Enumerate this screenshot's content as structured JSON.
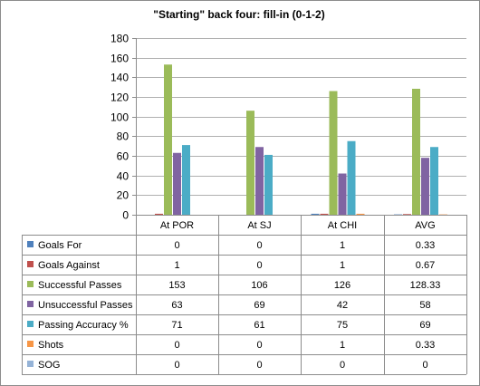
{
  "chart_data": {
    "type": "bar",
    "title": "\"Starting\" back four: fill-in (0-1-2)",
    "categories": [
      "At POR",
      "At SJ",
      "At CHI",
      "AVG"
    ],
    "ylim": [
      0,
      180
    ],
    "yticks": [
      0,
      20,
      40,
      60,
      80,
      100,
      120,
      140,
      160,
      180
    ],
    "grid": true,
    "legend": "data-table-below",
    "series": [
      {
        "name": "Goals For",
        "color": "#4f81bd",
        "values": [
          0,
          0,
          1,
          0.33
        ],
        "labels": [
          "0",
          "0",
          "1",
          "0.33"
        ]
      },
      {
        "name": "Goals Against",
        "color": "#c0504d",
        "values": [
          1,
          0,
          1,
          0.67
        ],
        "labels": [
          "1",
          "0",
          "1",
          "0.67"
        ]
      },
      {
        "name": "Successful Passes",
        "color": "#9bbb59",
        "values": [
          153,
          106,
          126,
          128.33
        ],
        "labels": [
          "153",
          "106",
          "126",
          "128.33"
        ]
      },
      {
        "name": "Unsuccessful Passes",
        "color": "#8064a2",
        "values": [
          63,
          69,
          42,
          58
        ],
        "labels": [
          "63",
          "69",
          "42",
          "58"
        ]
      },
      {
        "name": "Passing Accuracy %",
        "color": "#4bacc6",
        "values": [
          71,
          61,
          75,
          69
        ],
        "labels": [
          "71",
          "61",
          "75",
          "69"
        ]
      },
      {
        "name": "Shots",
        "color": "#f79646",
        "values": [
          0,
          0,
          1,
          0.33
        ],
        "labels": [
          "0",
          "0",
          "1",
          "0.33"
        ]
      },
      {
        "name": "SOG",
        "color": "#95b3d7",
        "values": [
          0,
          0,
          0,
          0
        ],
        "labels": [
          "0",
          "0",
          "0",
          "0"
        ]
      }
    ]
  }
}
